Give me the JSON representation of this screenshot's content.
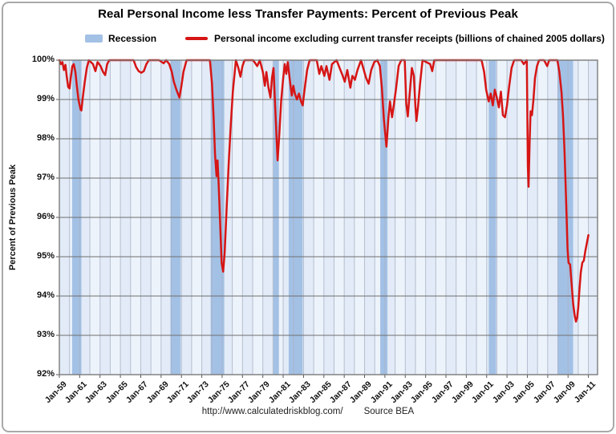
{
  "title": "Real Personal Income less Transfer Payments: Percent of Previous Peak",
  "legend": {
    "recession_label": "Recession",
    "income_label": "Personal income excluding current transfer receipts (billions of chained 2005 dollars)"
  },
  "y_axis": {
    "title": "Percent of Previous Peak"
  },
  "footer": {
    "url": "http://www.calculatedriskblog.com/",
    "source": "Source BEA"
  },
  "colors": {
    "line": "#d61515",
    "recession_band": "#a3c1e5",
    "stripe_odd": "#e2ebf7",
    "stripe_even": "#edf3fb",
    "gridline_h": "#6f6f6f",
    "gridline_v": "#a9b2c5",
    "plot_border": "#7a7a7a",
    "tick": "#555555"
  },
  "chart_data": {
    "type": "line",
    "title": "Real Personal Income less Transfer Payments: Percent of Previous Peak",
    "xlabel": "",
    "ylabel": "Percent of Previous Peak",
    "x_range": [
      1959,
      2011.9
    ],
    "ylim": [
      92,
      100
    ],
    "grid": true,
    "legend_position": "top",
    "y_tick_values": [
      100,
      99,
      98,
      97,
      96,
      95,
      94,
      93,
      92
    ],
    "y_tick_labels": [
      "100%",
      "99%",
      "98%",
      "97%",
      "96%",
      "95%",
      "94%",
      "93%",
      "92%"
    ],
    "x_tick_years": [
      1959,
      1961,
      1963,
      1965,
      1967,
      1969,
      1971,
      1973,
      1975,
      1977,
      1979,
      1981,
      1983,
      1985,
      1987,
      1989,
      1991,
      1993,
      1995,
      1997,
      1999,
      2001,
      2003,
      2005,
      2007,
      2009,
      2011
    ],
    "x_tick_labels": [
      "Jan-59",
      "Jan-61",
      "Jan-63",
      "Jan-65",
      "Jan-67",
      "Jan-69",
      "Jan-71",
      "Jan-73",
      "Jan-75",
      "Jan-77",
      "Jan-79",
      "Jan-81",
      "Jan-83",
      "Jan-85",
      "Jan-87",
      "Jan-89",
      "Jan-91",
      "Jan-93",
      "Jan-95",
      "Jan-97",
      "Jan-99",
      "Jan-01",
      "Jan-03",
      "Jan-05",
      "Jan-07",
      "Jan-09",
      "Jan-11"
    ],
    "recession_bands": [
      [
        1960.25,
        1961.17
      ],
      [
        1969.92,
        1970.92
      ],
      [
        1973.87,
        1975.21
      ],
      [
        1980.04,
        1980.58
      ],
      [
        1981.54,
        1982.92
      ],
      [
        1990.54,
        1991.25
      ],
      [
        2001.21,
        2001.92
      ],
      [
        2007.96,
        2009.5
      ]
    ],
    "series": [
      {
        "name": "Personal income excluding current transfer receipts (billions of chained 2005 dollars)",
        "units": "percent of previous peak",
        "points": [
          [
            1959.0,
            100
          ],
          [
            1959.15,
            99.9
          ],
          [
            1959.3,
            99.95
          ],
          [
            1959.45,
            99.75
          ],
          [
            1959.6,
            99.88
          ],
          [
            1959.72,
            99.6
          ],
          [
            1959.87,
            99.32
          ],
          [
            1960.0,
            99.28
          ],
          [
            1960.12,
            99.55
          ],
          [
            1960.28,
            99.85
          ],
          [
            1960.42,
            99.9
          ],
          [
            1960.58,
            99.7
          ],
          [
            1960.72,
            99.35
          ],
          [
            1960.88,
            99.0
          ],
          [
            1961.08,
            98.75
          ],
          [
            1961.17,
            98.72
          ],
          [
            1961.3,
            99.05
          ],
          [
            1961.5,
            99.45
          ],
          [
            1961.7,
            99.8
          ],
          [
            1961.9,
            100
          ],
          [
            1962.3,
            99.9
          ],
          [
            1962.55,
            99.72
          ],
          [
            1962.75,
            99.95
          ],
          [
            1963.05,
            99.85
          ],
          [
            1963.3,
            99.7
          ],
          [
            1963.5,
            99.62
          ],
          [
            1963.7,
            99.9
          ],
          [
            1963.9,
            100
          ],
          [
            1965.0,
            100
          ],
          [
            1966.3,
            100
          ],
          [
            1966.55,
            99.82
          ],
          [
            1966.8,
            99.72
          ],
          [
            1967.05,
            99.68
          ],
          [
            1967.3,
            99.72
          ],
          [
            1967.55,
            99.9
          ],
          [
            1967.8,
            100
          ],
          [
            1968.8,
            100
          ],
          [
            1969.25,
            99.92
          ],
          [
            1969.5,
            100
          ],
          [
            1969.8,
            99.9
          ],
          [
            1970.05,
            99.7
          ],
          [
            1970.25,
            99.45
          ],
          [
            1970.5,
            99.25
          ],
          [
            1970.8,
            99.05
          ],
          [
            1971.0,
            99.35
          ],
          [
            1971.2,
            99.7
          ],
          [
            1971.5,
            100
          ],
          [
            1972.5,
            100
          ],
          [
            1973.4,
            100
          ],
          [
            1973.8,
            100
          ],
          [
            1974.0,
            99.4
          ],
          [
            1974.15,
            98.6
          ],
          [
            1974.3,
            97.6
          ],
          [
            1974.45,
            97.05
          ],
          [
            1974.55,
            97.45
          ],
          [
            1974.65,
            96.9
          ],
          [
            1974.8,
            95.9
          ],
          [
            1974.95,
            94.85
          ],
          [
            1975.1,
            94.62
          ],
          [
            1975.25,
            95.1
          ],
          [
            1975.45,
            96.3
          ],
          [
            1975.65,
            97.4
          ],
          [
            1975.85,
            98.35
          ],
          [
            1976.05,
            99.2
          ],
          [
            1976.35,
            100
          ],
          [
            1976.6,
            99.8
          ],
          [
            1976.8,
            99.58
          ],
          [
            1977.0,
            99.85
          ],
          [
            1977.2,
            100
          ],
          [
            1978.05,
            100
          ],
          [
            1978.45,
            99.85
          ],
          [
            1978.7,
            100
          ],
          [
            1979.0,
            99.7
          ],
          [
            1979.2,
            99.35
          ],
          [
            1979.35,
            99.7
          ],
          [
            1979.55,
            99.3
          ],
          [
            1979.75,
            99.05
          ],
          [
            1979.9,
            99.55
          ],
          [
            1980.05,
            99.8
          ],
          [
            1980.2,
            98.9
          ],
          [
            1980.45,
            97.45
          ],
          [
            1980.62,
            98.1
          ],
          [
            1980.8,
            98.95
          ],
          [
            1981.0,
            99.55
          ],
          [
            1981.15,
            99.9
          ],
          [
            1981.3,
            99.65
          ],
          [
            1981.45,
            99.95
          ],
          [
            1981.65,
            99.5
          ],
          [
            1981.85,
            99.1
          ],
          [
            1982.0,
            99.35
          ],
          [
            1982.15,
            99.15
          ],
          [
            1982.35,
            99.0
          ],
          [
            1982.55,
            99.15
          ],
          [
            1982.75,
            98.95
          ],
          [
            1982.92,
            98.85
          ],
          [
            1983.1,
            99.25
          ],
          [
            1983.35,
            99.75
          ],
          [
            1983.6,
            100
          ],
          [
            1984.3,
            100
          ],
          [
            1984.55,
            99.65
          ],
          [
            1984.75,
            99.85
          ],
          [
            1985.05,
            99.6
          ],
          [
            1985.25,
            99.85
          ],
          [
            1985.55,
            99.5
          ],
          [
            1985.8,
            99.9
          ],
          [
            1986.25,
            100
          ],
          [
            1986.85,
            99.6
          ],
          [
            1987.05,
            99.45
          ],
          [
            1987.3,
            99.75
          ],
          [
            1987.6,
            99.3
          ],
          [
            1987.8,
            99.6
          ],
          [
            1988.05,
            99.5
          ],
          [
            1988.3,
            99.75
          ],
          [
            1988.65,
            100
          ],
          [
            1989.15,
            99.55
          ],
          [
            1989.4,
            99.4
          ],
          [
            1989.65,
            99.75
          ],
          [
            1989.95,
            99.95
          ],
          [
            1990.25,
            100
          ],
          [
            1990.5,
            99.85
          ],
          [
            1990.7,
            99.3
          ],
          [
            1990.9,
            98.5
          ],
          [
            1991.15,
            97.8
          ],
          [
            1991.35,
            98.55
          ],
          [
            1991.5,
            98.95
          ],
          [
            1991.7,
            98.55
          ],
          [
            1991.9,
            98.9
          ],
          [
            1992.1,
            99.3
          ],
          [
            1992.35,
            99.85
          ],
          [
            1992.6,
            100
          ],
          [
            1992.95,
            100
          ],
          [
            1993.1,
            98.9
          ],
          [
            1993.25,
            98.57
          ],
          [
            1993.45,
            99.2
          ],
          [
            1993.65,
            99.8
          ],
          [
            1993.85,
            99.6
          ],
          [
            1994.0,
            98.8
          ],
          [
            1994.1,
            98.45
          ],
          [
            1994.25,
            98.8
          ],
          [
            1994.45,
            99.4
          ],
          [
            1994.7,
            100
          ],
          [
            1995.45,
            99.9
          ],
          [
            1995.65,
            99.72
          ],
          [
            1995.85,
            100
          ],
          [
            1996.8,
            100
          ],
          [
            1997.8,
            100
          ],
          [
            1998.8,
            100
          ],
          [
            1999.8,
            100
          ],
          [
            2000.5,
            100
          ],
          [
            2000.75,
            99.7
          ],
          [
            2000.95,
            99.25
          ],
          [
            2001.2,
            98.95
          ],
          [
            2001.4,
            99.15
          ],
          [
            2001.6,
            98.85
          ],
          [
            2001.8,
            99.25
          ],
          [
            2002.0,
            99.05
          ],
          [
            2002.2,
            98.8
          ],
          [
            2002.4,
            99.2
          ],
          [
            2002.6,
            98.6
          ],
          [
            2002.8,
            98.55
          ],
          [
            2003.0,
            98.85
          ],
          [
            2003.2,
            99.3
          ],
          [
            2003.45,
            99.8
          ],
          [
            2003.7,
            100
          ],
          [
            2004.4,
            100
          ],
          [
            2004.65,
            99.9
          ],
          [
            2004.95,
            100
          ],
          [
            2005.05,
            97.3
          ],
          [
            2005.12,
            96.78
          ],
          [
            2005.22,
            97.9
          ],
          [
            2005.32,
            98.7
          ],
          [
            2005.45,
            98.6
          ],
          [
            2005.6,
            99.0
          ],
          [
            2005.75,
            99.55
          ],
          [
            2005.95,
            99.85
          ],
          [
            2006.15,
            100
          ],
          [
            2006.65,
            100
          ],
          [
            2006.95,
            99.85
          ],
          [
            2007.15,
            100
          ],
          [
            2007.6,
            100
          ],
          [
            2007.95,
            100
          ],
          [
            2008.15,
            99.7
          ],
          [
            2008.35,
            99.2
          ],
          [
            2008.5,
            98.6
          ],
          [
            2008.65,
            97.7
          ],
          [
            2008.8,
            96.5
          ],
          [
            2008.95,
            95.2
          ],
          [
            2009.05,
            94.85
          ],
          [
            2009.2,
            94.8
          ],
          [
            2009.35,
            94.3
          ],
          [
            2009.5,
            93.8
          ],
          [
            2009.65,
            93.5
          ],
          [
            2009.78,
            93.35
          ],
          [
            2009.9,
            93.45
          ],
          [
            2010.0,
            93.7
          ],
          [
            2010.1,
            94.1
          ],
          [
            2010.25,
            94.6
          ],
          [
            2010.4,
            94.85
          ],
          [
            2010.55,
            94.9
          ],
          [
            2010.7,
            95.15
          ],
          [
            2010.85,
            95.35
          ],
          [
            2011.0,
            95.55
          ]
        ]
      }
    ]
  }
}
